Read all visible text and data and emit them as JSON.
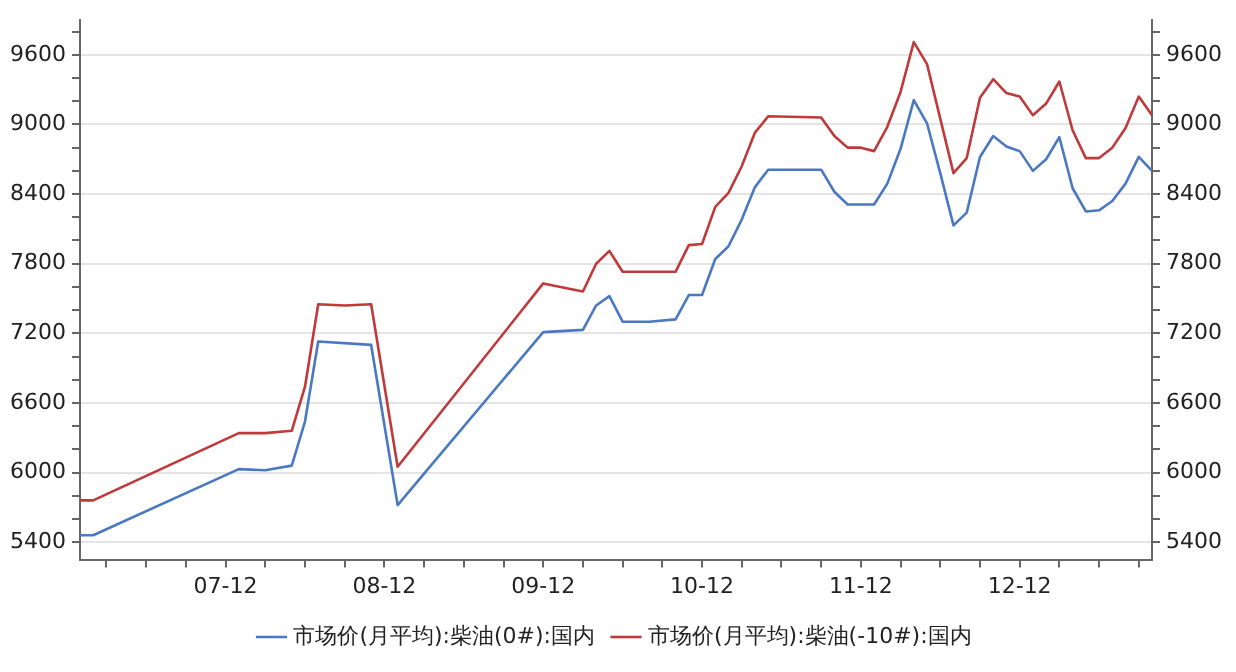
{
  "chart_data": {
    "type": "line",
    "xlim": [
      "2007-01",
      "2013-10"
    ],
    "xticks": [
      {
        "value": "2007-03",
        "label": null
      },
      {
        "value": "2007-06",
        "label": null
      },
      {
        "value": "2007-09",
        "label": null
      },
      {
        "value": "2007-12",
        "label": "07-12"
      },
      {
        "value": "2008-03",
        "label": null
      },
      {
        "value": "2008-06",
        "label": null
      },
      {
        "value": "2008-09",
        "label": null
      },
      {
        "value": "2008-12",
        "label": "08-12"
      },
      {
        "value": "2009-03",
        "label": null
      },
      {
        "value": "2009-06",
        "label": null
      },
      {
        "value": "2009-09",
        "label": null
      },
      {
        "value": "2009-12",
        "label": "09-12"
      },
      {
        "value": "2010-03",
        "label": null
      },
      {
        "value": "2010-06",
        "label": null
      },
      {
        "value": "2010-09",
        "label": null
      },
      {
        "value": "2010-12",
        "label": "10-12"
      },
      {
        "value": "2011-03",
        "label": null
      },
      {
        "value": "2011-06",
        "label": null
      },
      {
        "value": "2011-09",
        "label": null
      },
      {
        "value": "2011-12",
        "label": "11-12"
      },
      {
        "value": "2012-03",
        "label": null
      },
      {
        "value": "2012-06",
        "label": null
      },
      {
        "value": "2012-09",
        "label": null
      },
      {
        "value": "2012-12",
        "label": "12-12"
      },
      {
        "value": "2013-03",
        "label": null
      },
      {
        "value": "2013-06",
        "label": null
      },
      {
        "value": "2013-09",
        "label": null
      }
    ],
    "ylim": [
      5250,
      9900
    ],
    "yticks": [
      {
        "value": 5400,
        "label": "5400"
      },
      {
        "value": 5600,
        "label": null
      },
      {
        "value": 5800,
        "label": null
      },
      {
        "value": 6000,
        "label": "6000"
      },
      {
        "value": 6200,
        "label": null
      },
      {
        "value": 6400,
        "label": null
      },
      {
        "value": 6600,
        "label": "6600"
      },
      {
        "value": 6800,
        "label": null
      },
      {
        "value": 7000,
        "label": null
      },
      {
        "value": 7200,
        "label": "7200"
      },
      {
        "value": 7400,
        "label": null
      },
      {
        "value": 7600,
        "label": null
      },
      {
        "value": 7800,
        "label": "7800"
      },
      {
        "value": 8000,
        "label": null
      },
      {
        "value": 8200,
        "label": null
      },
      {
        "value": 8400,
        "label": "8400"
      },
      {
        "value": 8600,
        "label": null
      },
      {
        "value": 8800,
        "label": null
      },
      {
        "value": 9000,
        "label": "9000"
      },
      {
        "value": 9200,
        "label": null
      },
      {
        "value": 9400,
        "label": null
      },
      {
        "value": 9600,
        "label": "9600"
      },
      {
        "value": 9800,
        "label": null
      }
    ],
    "y2lim": [
      5250,
      9900
    ],
    "y2ticks": [
      {
        "value": 5400,
        "label": "5400"
      },
      {
        "value": 5600,
        "label": null
      },
      {
        "value": 5800,
        "label": null
      },
      {
        "value": 6000,
        "label": "6000"
      },
      {
        "value": 6200,
        "label": null
      },
      {
        "value": 6400,
        "label": null
      },
      {
        "value": 6600,
        "label": "6600"
      },
      {
        "value": 6800,
        "label": null
      },
      {
        "value": 7000,
        "label": null
      },
      {
        "value": 7200,
        "label": "7200"
      },
      {
        "value": 7400,
        "label": null
      },
      {
        "value": 7600,
        "label": null
      },
      {
        "value": 7800,
        "label": "7800"
      },
      {
        "value": 8000,
        "label": null
      },
      {
        "value": 8200,
        "label": null
      },
      {
        "value": 8400,
        "label": "8400"
      },
      {
        "value": 8600,
        "label": null
      },
      {
        "value": 8800,
        "label": null
      },
      {
        "value": 9000,
        "label": "9000"
      },
      {
        "value": 9200,
        "label": null
      },
      {
        "value": 9400,
        "label": null
      },
      {
        "value": 9600,
        "label": "9600"
      },
      {
        "value": 9800,
        "label": null
      }
    ],
    "grid": "y",
    "legend": "bottom",
    "marker": "none",
    "line_style": "solid",
    "series": [
      {
        "name": "市场价(月平均):柴油(0#):国内",
        "color": "#4a78c2",
        "x": [
          "2007-01",
          "2007-02",
          "2008-01",
          "2008-03",
          "2008-05",
          "2008-06",
          "2008-07",
          "2008-11",
          "2009-01",
          "2009-12",
          "2010-03",
          "2010-04",
          "2010-05",
          "2010-06",
          "2010-08",
          "2010-10",
          "2010-11",
          "2010-12",
          "2011-01",
          "2011-02",
          "2011-03",
          "2011-04",
          "2011-05",
          "2011-09",
          "2011-10",
          "2011-11",
          "2012-01",
          "2012-02",
          "2012-03",
          "2012-04",
          "2012-05",
          "2012-06",
          "2012-07",
          "2012-08",
          "2012-09",
          "2012-10",
          "2012-11",
          "2012-12",
          "2013-01",
          "2013-02",
          "2013-03",
          "2013-04",
          "2013-05",
          "2013-06",
          "2013-07",
          "2013-08",
          "2013-09",
          "2013-10"
        ],
        "values": [
          5460,
          5460,
          6030,
          6020,
          6060,
          6440,
          7130,
          7100,
          5720,
          7210,
          7230,
          7440,
          7520,
          7300,
          7300,
          7320,
          7530,
          7530,
          7840,
          7950,
          8180,
          8460,
          8610,
          8610,
          8420,
          8310,
          8310,
          8490,
          8790,
          9210,
          9010,
          8580,
          8130,
          8240,
          8720,
          8900,
          8810,
          8770,
          8600,
          8700,
          8890,
          8450,
          8250,
          8260,
          8340,
          8490,
          8720,
          8600
        ]
      },
      {
        "name": "市场价(月平均):柴油(-10#):国内",
        "color": "#c0393b",
        "x": [
          "2007-01",
          "2007-02",
          "2008-01",
          "2008-03",
          "2008-05",
          "2008-06",
          "2008-07",
          "2008-09",
          "2008-11",
          "2009-01",
          "2009-12",
          "2010-03",
          "2010-04",
          "2010-05",
          "2010-06",
          "2010-10",
          "2010-11",
          "2010-12",
          "2011-01",
          "2011-02",
          "2011-03",
          "2011-04",
          "2011-05",
          "2011-09",
          "2011-10",
          "2011-11",
          "2011-12",
          "2012-01",
          "2012-02",
          "2012-03",
          "2012-04",
          "2012-05",
          "2012-06",
          "2012-07",
          "2012-08",
          "2012-09",
          "2012-10",
          "2012-11",
          "2012-12",
          "2013-01",
          "2013-02",
          "2013-03",
          "2013-04",
          "2013-05",
          "2013-06",
          "2013-07",
          "2013-08",
          "2013-09",
          "2013-10"
        ],
        "values": [
          5760,
          5760,
          6340,
          6340,
          6360,
          6740,
          7450,
          7440,
          7450,
          6050,
          7630,
          7560,
          7800,
          7910,
          7730,
          7730,
          7960,
          7970,
          8290,
          8410,
          8640,
          8930,
          9070,
          9060,
          8900,
          8800,
          8800,
          8770,
          8980,
          9280,
          9710,
          9520,
          9050,
          8580,
          8710,
          9230,
          9390,
          9270,
          9240,
          9080,
          9180,
          9370,
          8950,
          8710,
          8710,
          8800,
          8970,
          9240,
          9080
        ]
      }
    ]
  }
}
